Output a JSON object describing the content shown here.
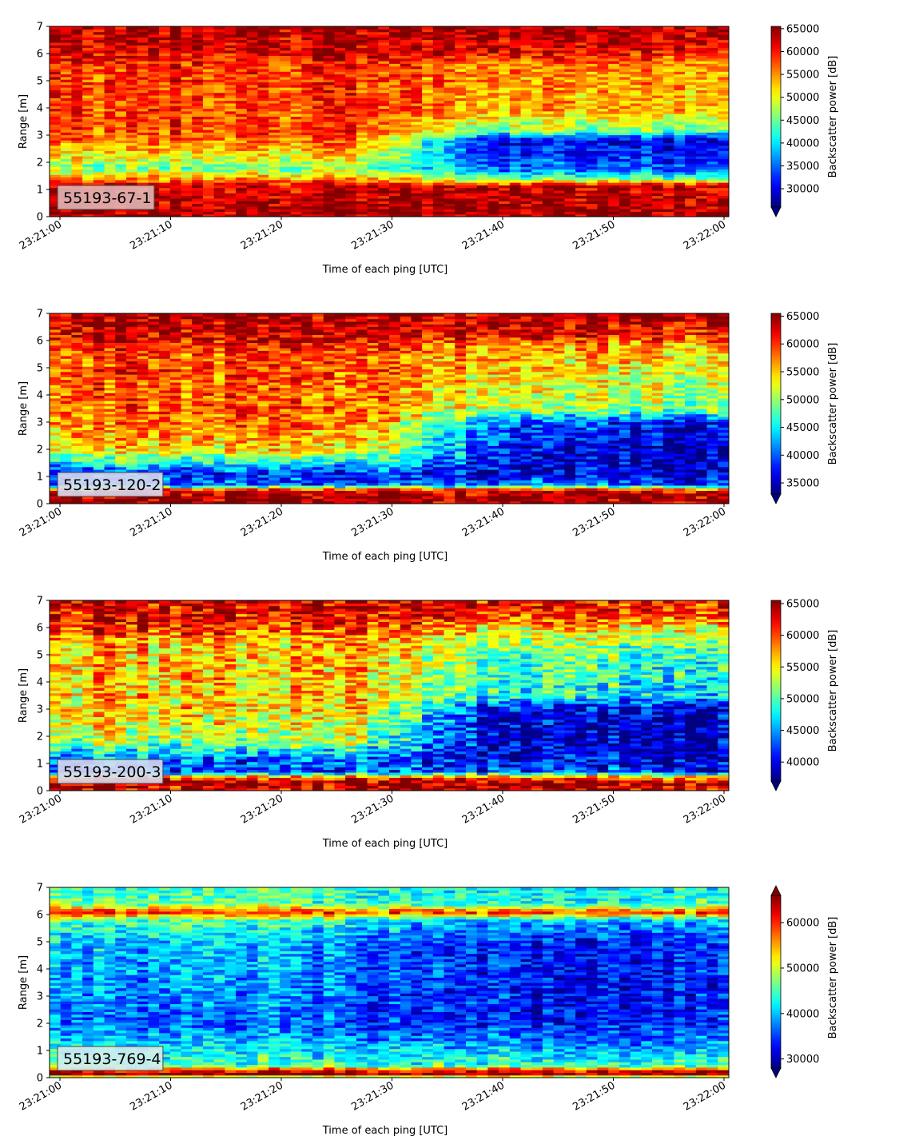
{
  "chart_data": [
    {
      "type": "heatmap",
      "label": "55193-67-1",
      "label_bg": "#e2b6b6",
      "xlabel": "Time of each ping [UTC]",
      "ylabel": "Range [m]",
      "colorbar_label": "Backscatter power [dB]",
      "xticks": [
        "23:21:00",
        "23:21:10",
        "23:21:20",
        "23:21:30",
        "23:21:40",
        "23:21:50",
        "23:22:00"
      ],
      "yticks": [
        "0",
        "1",
        "2",
        "3",
        "4",
        "5",
        "6",
        "7"
      ],
      "ylim": [
        0,
        7
      ],
      "cbar_ticks": [
        "30000",
        "35000",
        "40000",
        "45000",
        "50000",
        "55000",
        "60000",
        "65000"
      ],
      "cbar_range": [
        26000,
        65500
      ],
      "cbar_extend": "min",
      "colormap": "jet",
      "profile": {
        "early": [
          [
            0,
            64000
          ],
          [
            0.25,
            64500
          ],
          [
            1.15,
            62000
          ],
          [
            1.4,
            55000
          ],
          [
            1.8,
            46000
          ],
          [
            2.3,
            52000
          ],
          [
            3.0,
            58000
          ],
          [
            5.5,
            59000
          ],
          [
            6.0,
            62000
          ],
          [
            7.0,
            64000
          ]
        ],
        "late": [
          [
            0,
            64000
          ],
          [
            0.25,
            64500
          ],
          [
            1.15,
            62000
          ],
          [
            1.4,
            46000
          ],
          [
            1.7,
            36000
          ],
          [
            2.2,
            33000
          ],
          [
            2.8,
            30000
          ],
          [
            3.2,
            46000
          ],
          [
            4.0,
            54000
          ],
          [
            5.5,
            55000
          ],
          [
            6.2,
            62000
          ],
          [
            7.0,
            64000
          ]
        ],
        "transition": [
          0.45,
          0.65
        ]
      }
    },
    {
      "type": "heatmap",
      "label": "55193-120-2",
      "label_bg": "#d9dcf0",
      "xlabel": "Time of each ping [UTC]",
      "ylabel": "Range [m]",
      "colorbar_label": "Backscatter power [dB]",
      "xticks": [
        "23:21:00",
        "23:21:10",
        "23:21:20",
        "23:21:30",
        "23:21:40",
        "23:21:50",
        "23:22:00"
      ],
      "yticks": [
        "0",
        "1",
        "2",
        "3",
        "4",
        "5",
        "6",
        "7"
      ],
      "ylim": [
        0,
        7
      ],
      "cbar_ticks": [
        "35000",
        "40000",
        "45000",
        "50000",
        "55000",
        "60000",
        "65000"
      ],
      "cbar_range": [
        33000,
        65500
      ],
      "cbar_extend": "min",
      "colormap": "jet",
      "profile": {
        "early": [
          [
            0,
            64000
          ],
          [
            0.3,
            64500
          ],
          [
            0.5,
            62000
          ],
          [
            0.7,
            40000
          ],
          [
            1.1,
            38000
          ],
          [
            1.5,
            45000
          ],
          [
            2.0,
            54000
          ],
          [
            3.0,
            58000
          ],
          [
            5.5,
            59000
          ],
          [
            6.0,
            62000
          ],
          [
            7.0,
            64000
          ]
        ],
        "late": [
          [
            0,
            64000
          ],
          [
            0.3,
            64500
          ],
          [
            0.5,
            62000
          ],
          [
            0.7,
            40000
          ],
          [
            1.1,
            36000
          ],
          [
            2.0,
            35000
          ],
          [
            3.0,
            38000
          ],
          [
            3.5,
            50000
          ],
          [
            4.5,
            52000
          ],
          [
            5.8,
            56000
          ],
          [
            6.3,
            62000
          ],
          [
            7.0,
            64000
          ]
        ],
        "transition": [
          0.45,
          0.7
        ]
      }
    },
    {
      "type": "heatmap",
      "label": "55193-200-3",
      "label_bg": "#d9dcf0",
      "xlabel": "Time of each ping [UTC]",
      "ylabel": "Range [m]",
      "colorbar_label": "Backscatter power [dB]",
      "xticks": [
        "23:21:00",
        "23:21:10",
        "23:21:20",
        "23:21:30",
        "23:21:40",
        "23:21:50",
        "23:22:00"
      ],
      "yticks": [
        "0",
        "1",
        "2",
        "3",
        "4",
        "5",
        "6",
        "7"
      ],
      "ylim": [
        0,
        7
      ],
      "cbar_ticks": [
        "40000",
        "45000",
        "50000",
        "55000",
        "60000",
        "65000"
      ],
      "cbar_range": [
        37000,
        65500
      ],
      "cbar_extend": "min",
      "colormap": "jet",
      "profile": {
        "early": [
          [
            0,
            63000
          ],
          [
            0.3,
            64500
          ],
          [
            0.5,
            60000
          ],
          [
            0.7,
            42000
          ],
          [
            1.2,
            44000
          ],
          [
            1.8,
            52000
          ],
          [
            3.0,
            56000
          ],
          [
            5.5,
            57000
          ],
          [
            6.0,
            61000
          ],
          [
            7.0,
            63000
          ]
        ],
        "late": [
          [
            0,
            63000
          ],
          [
            0.3,
            64500
          ],
          [
            0.5,
            60000
          ],
          [
            0.7,
            42000
          ],
          [
            1.2,
            40000
          ],
          [
            2.0,
            39000
          ],
          [
            3.0,
            40000
          ],
          [
            3.5,
            48000
          ],
          [
            5.0,
            50000
          ],
          [
            6.0,
            56000
          ],
          [
            6.5,
            61000
          ],
          [
            7.0,
            62000
          ]
        ],
        "transition": [
          0.45,
          0.65
        ]
      }
    },
    {
      "type": "heatmap",
      "label": "55193-769-4",
      "label_bg": "#d4ecf0",
      "xlabel": "Time of each ping [UTC]",
      "ylabel": "Range [m]",
      "colorbar_label": "Backscatter power [dB]",
      "xticks": [
        "23:21:00",
        "23:21:10",
        "23:21:20",
        "23:21:30",
        "23:21:40",
        "23:21:50",
        "23:22:00"
      ],
      "yticks": [
        "0",
        "1",
        "2",
        "3",
        "4",
        "5",
        "6",
        "7"
      ],
      "ylim": [
        0,
        7
      ],
      "cbar_ticks": [
        "30000",
        "40000",
        "50000",
        "60000"
      ],
      "cbar_range": [
        28000,
        66000
      ],
      "cbar_extend": "both",
      "colormap": "jet",
      "profile": {
        "early": [
          [
            0,
            44000
          ],
          [
            0.15,
            66000
          ],
          [
            0.3,
            60000
          ],
          [
            0.45,
            45000
          ],
          [
            1.0,
            42000
          ],
          [
            2.0,
            36000
          ],
          [
            3.0,
            38000
          ],
          [
            5.0,
            40000
          ],
          [
            5.8,
            45000
          ],
          [
            6.1,
            60000
          ],
          [
            6.4,
            46000
          ],
          [
            7.0,
            44000
          ]
        ],
        "late": [
          [
            0,
            44000
          ],
          [
            0.15,
            66000
          ],
          [
            0.3,
            60000
          ],
          [
            0.45,
            45000
          ],
          [
            1.0,
            40000
          ],
          [
            2.0,
            34000
          ],
          [
            3.0,
            33000
          ],
          [
            5.0,
            34000
          ],
          [
            5.8,
            40000
          ],
          [
            6.1,
            60000
          ],
          [
            6.4,
            44000
          ],
          [
            7.0,
            42000
          ]
        ],
        "transition": [
          0.3,
          0.7
        ]
      }
    }
  ]
}
